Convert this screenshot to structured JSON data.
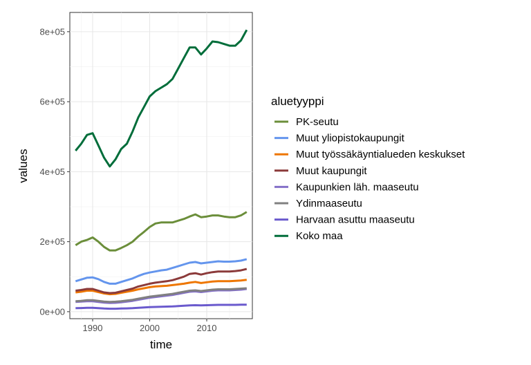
{
  "chart_data": {
    "type": "line",
    "xlabel": "time",
    "ylabel": "values",
    "xlim": [
      1986,
      2018
    ],
    "ylim": [
      -20000,
      855000
    ],
    "x_ticks": [
      1990,
      2000,
      2010
    ],
    "x_tick_labels": [
      "1990",
      "2000",
      "2010"
    ],
    "y_ticks": [
      0,
      200000,
      400000,
      600000,
      800000
    ],
    "y_tick_labels": [
      "0e+00",
      "2e+05",
      "4e+05",
      "6e+05",
      "8e+05"
    ],
    "grid": true,
    "legend_title": "aluetyyppi",
    "legend_position": "right",
    "x": [
      1987,
      1988,
      1989,
      1990,
      1991,
      1992,
      1993,
      1994,
      1995,
      1996,
      1997,
      1998,
      1999,
      2000,
      2001,
      2002,
      2003,
      2004,
      2005,
      2006,
      2007,
      2008,
      2009,
      2010,
      2011,
      2012,
      2013,
      2014,
      2015,
      2016,
      2017
    ],
    "series": [
      {
        "name": "PK-seutu",
        "color": "#6b8e3a",
        "values": [
          190000,
          200000,
          205000,
          212000,
          200000,
          185000,
          175000,
          175000,
          182000,
          190000,
          200000,
          215000,
          228000,
          242000,
          252000,
          255000,
          255000,
          255000,
          260000,
          265000,
          272000,
          278000,
          270000,
          272000,
          275000,
          275000,
          272000,
          270000,
          270000,
          275000,
          285000
        ]
      },
      {
        "name": "Muut yliopistokaupungit",
        "color": "#6495ed",
        "values": [
          87000,
          92000,
          97000,
          98000,
          93000,
          85000,
          80000,
          80000,
          85000,
          90000,
          95000,
          102000,
          108000,
          112000,
          115000,
          118000,
          120000,
          125000,
          130000,
          135000,
          140000,
          142000,
          138000,
          140000,
          142000,
          144000,
          143000,
          143000,
          144000,
          146000,
          150000
        ]
      },
      {
        "name": "Muut työssäkäyntialueden keskukset",
        "color": "#ee7600",
        "values": [
          55000,
          57000,
          60000,
          60000,
          56000,
          52000,
          50000,
          51000,
          54000,
          57000,
          60000,
          64000,
          67000,
          70000,
          72000,
          73000,
          74000,
          76000,
          78000,
          80000,
          83000,
          85000,
          82000,
          84000,
          86000,
          87000,
          87000,
          87000,
          88000,
          89000,
          91000
        ]
      },
      {
        "name": "Muut kaupungit",
        "color": "#8b3a3a",
        "values": [
          60000,
          62000,
          65000,
          65000,
          60000,
          55000,
          53000,
          54000,
          58000,
          62000,
          66000,
          72000,
          76000,
          80000,
          83000,
          85000,
          87000,
          90000,
          95000,
          100000,
          108000,
          110000,
          106000,
          110000,
          113000,
          115000,
          115000,
          115000,
          116000,
          118000,
          122000
        ]
      },
      {
        "name": "Kaupunkien läh. maaseutu",
        "color": "#8470c8",
        "values": [
          28000,
          29000,
          30000,
          30000,
          28000,
          26000,
          25000,
          25500,
          27000,
          29000,
          31000,
          34000,
          37000,
          40000,
          42000,
          44000,
          46000,
          48000,
          51000,
          54000,
          57000,
          58000,
          56000,
          58000,
          60000,
          61000,
          61000,
          61000,
          62000,
          63000,
          65000
        ]
      },
      {
        "name": "Ydinmaaseutu",
        "color": "#808080",
        "values": [
          30000,
          31000,
          33000,
          33000,
          31000,
          29000,
          28000,
          28500,
          30000,
          32000,
          34000,
          37000,
          40000,
          43000,
          45000,
          47000,
          49000,
          51000,
          54000,
          57000,
          60000,
          61000,
          59000,
          61000,
          63000,
          64000,
          64000,
          64000,
          65000,
          66000,
          67000
        ]
      },
      {
        "name": "Harvaan asuttu maaseutu",
        "color": "#6a5acd",
        "values": [
          10000,
          10500,
          11000,
          11000,
          10000,
          9000,
          8500,
          8500,
          9000,
          9500,
          10000,
          11000,
          12000,
          13000,
          13500,
          14000,
          14500,
          15000,
          16000,
          17000,
          18000,
          18500,
          18000,
          18500,
          19000,
          19500,
          19500,
          19500,
          19500,
          20000,
          20000
        ]
      },
      {
        "name": "Koko maa",
        "color": "#006d3a",
        "values": [
          460000,
          480000,
          505000,
          510000,
          475000,
          440000,
          415000,
          435000,
          465000,
          480000,
          515000,
          555000,
          585000,
          615000,
          630000,
          640000,
          650000,
          665000,
          695000,
          725000,
          755000,
          755000,
          735000,
          752000,
          772000,
          770000,
          765000,
          760000,
          760000,
          775000,
          805000
        ]
      }
    ]
  }
}
